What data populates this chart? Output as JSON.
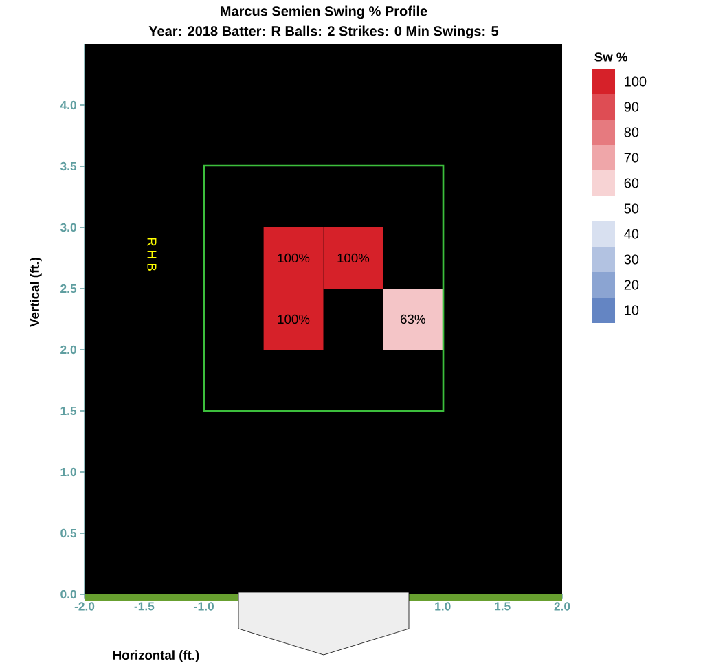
{
  "chart_data": {
    "type": "bar",
    "title": "Marcus Semien Swing % Profile",
    "subtitle": "Year: 2018 Batter: R Balls: 2 Strikes: 0 Min Swings: 5",
    "xlabel": "Horizontal (ft.)",
    "ylabel": "Vertical (ft.)",
    "clabel": "Sw %",
    "series": [
      {
        "x": [
          -0.25,
          0.25
        ],
        "base": [
          2.5,
          2.5
        ],
        "values": [
          0.5,
          0.5
        ],
        "colors": [
          "#d62129",
          "#d62129"
        ]
      },
      {
        "x": [
          -0.25,
          0.75
        ],
        "base": [
          2.0,
          2.0
        ],
        "values": [
          0.5,
          0.5
        ],
        "colors": [
          "#d62129",
          "#f4c5c7"
        ]
      }
    ],
    "xlim": [
      -2,
      2
    ],
    "ylim": [
      0,
      4.5
    ],
    "xticks": [
      {
        "value": -2,
        "label": "-2.0"
      },
      {
        "value": -1.5,
        "label": "-1.5"
      },
      {
        "value": -1,
        "label": "-1.0"
      },
      {
        "value": 1,
        "label": "1.0"
      },
      {
        "value": 1.5,
        "label": "1.5"
      },
      {
        "value": 2,
        "label": "2.0"
      }
    ],
    "yticks": [
      {
        "value": 0,
        "label": "0.0"
      },
      {
        "value": 0.5,
        "label": "0.5"
      },
      {
        "value": 1,
        "label": "1.0"
      },
      {
        "value": 1.5,
        "label": "1.5"
      },
      {
        "value": 2,
        "label": "2.0"
      },
      {
        "value": 2.5,
        "label": "2.5"
      },
      {
        "value": 3,
        "label": "3.0"
      },
      {
        "value": 3.5,
        "label": "3.5"
      },
      {
        "value": 4,
        "label": "4.0"
      }
    ],
    "clim": [
      5,
      105
    ],
    "cticks": [
      100,
      90,
      80,
      70,
      60,
      50,
      40,
      30,
      20,
      10
    ],
    "annotations": [
      "R H B",
      "100%",
      "100%",
      "100%",
      "63%"
    ]
  }
}
